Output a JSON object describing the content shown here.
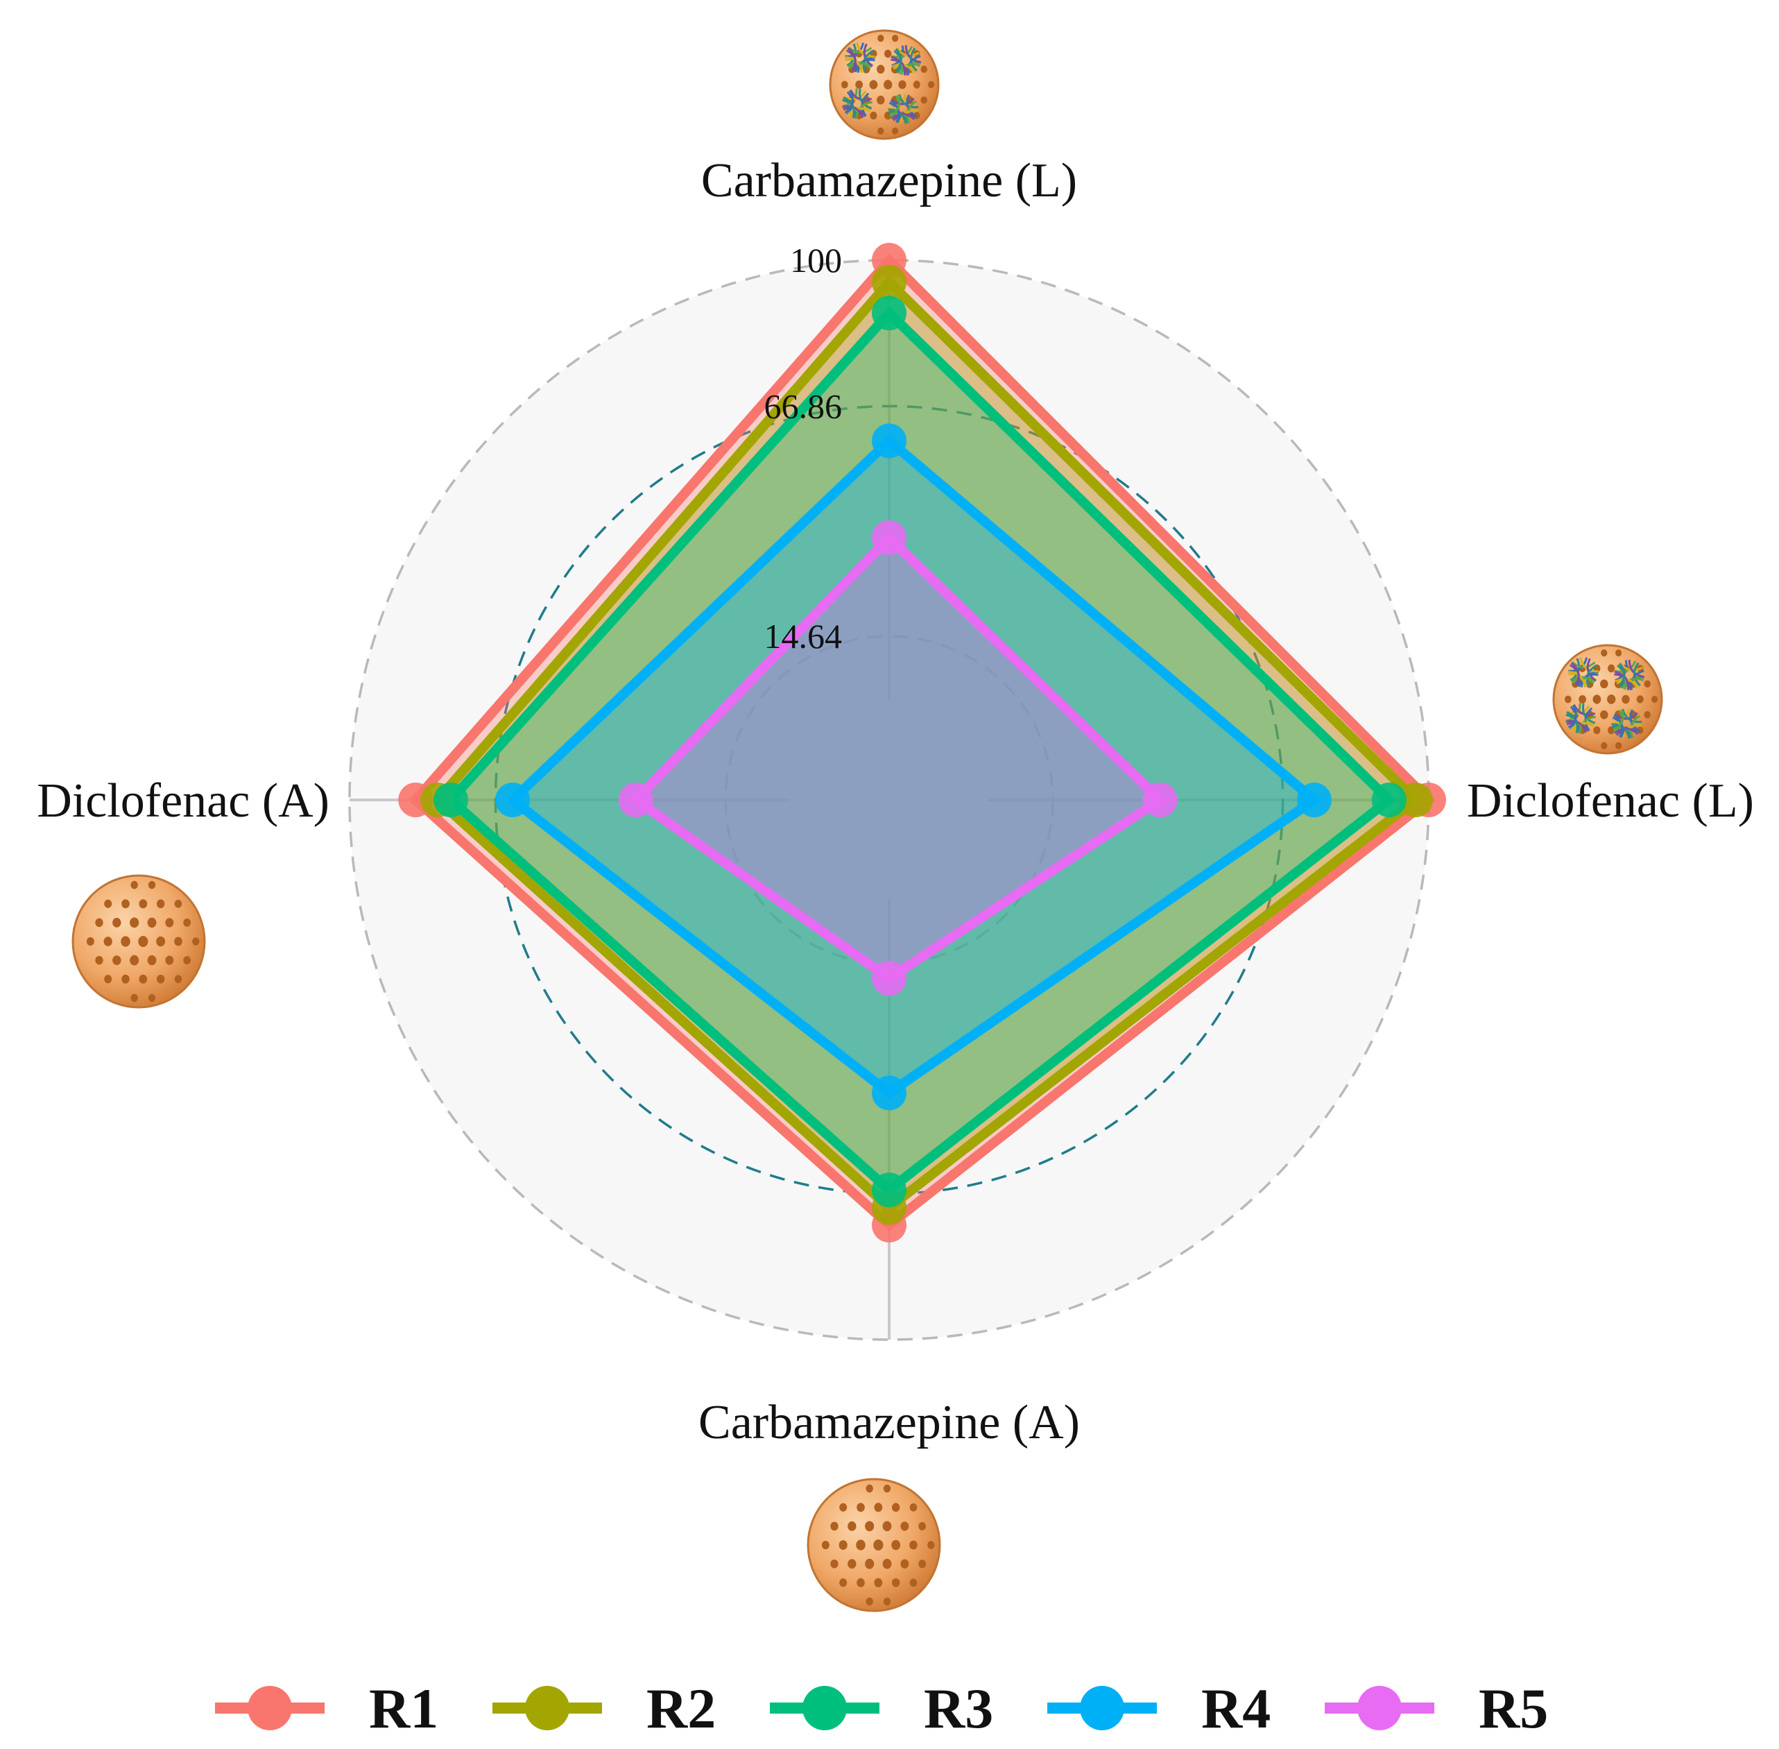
{
  "chart_data": {
    "type": "radar",
    "title": "",
    "axes": [
      {
        "label": "Carbamazepine (L)",
        "icon": "particle-with-enzymes-icon"
      },
      {
        "label": "Diclofenac (L)",
        "icon": "particle-with-enzymes-icon"
      },
      {
        "label": "Carbamazepine (A)",
        "icon": "porous-particle-icon"
      },
      {
        "label": "Diclofenac (A)",
        "icon": "porous-particle-icon"
      }
    ],
    "radial_ticks": [
      "14.64",
      "66.86",
      "100"
    ],
    "radial_range": [
      0,
      100
    ],
    "grid": true,
    "legend_position": "bottom",
    "series": [
      {
        "name": "R1",
        "color": "#F8766D",
        "values": [
          100,
          100,
          74,
          85
        ]
      },
      {
        "name": "R2",
        "color": "#A3A500",
        "values": [
          95,
          97,
          70,
          80
        ]
      },
      {
        "name": "R3",
        "color": "#00BF7D",
        "values": [
          88,
          91,
          66,
          77
        ]
      },
      {
        "name": "R4",
        "color": "#00B0F6",
        "values": [
          59,
          74,
          44,
          63
        ]
      },
      {
        "name": "R5",
        "color": "#E76BF3",
        "values": [
          37,
          39,
          18,
          35
        ]
      }
    ]
  }
}
